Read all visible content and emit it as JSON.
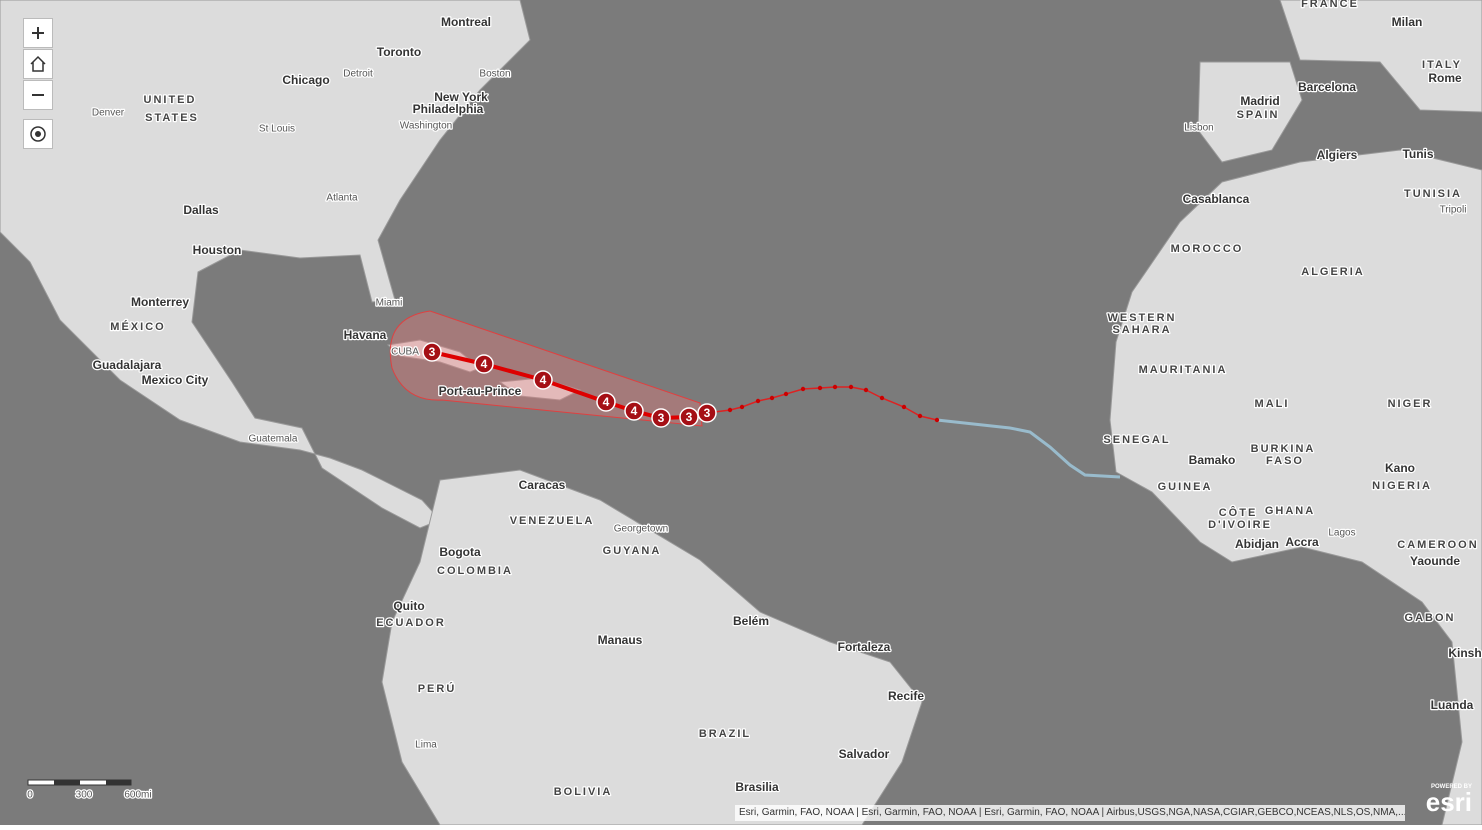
{
  "map": {
    "places": [
      "Montreal",
      "Toronto",
      "Boston",
      "Chicago",
      "Detroit",
      "New York",
      "Philadelphia",
      "Washington",
      "Denver",
      "UNITED",
      "STATES",
      "St Louis",
      "Atlanta",
      "Dallas",
      "Houston",
      "Miami",
      "Monterrey",
      "MÉXICO",
      "Havana",
      "CUBA",
      "Guadalajara",
      "Mexico City",
      "Port-au-Prince",
      "Guatemala",
      "Caracas",
      "VENEZUELA",
      "Georgetown",
      "GUYANA",
      "Bogota",
      "COLOMBIA",
      "Quito",
      "ECUADOR",
      "Manaus",
      "Belém",
      "Fortaleza",
      "PERÚ",
      "Recife",
      "Lima",
      "BRAZIL",
      "Salvador",
      "Brasilia",
      "BOLIVIA",
      "FRANCE",
      "Milan",
      "ITALY",
      "Rome",
      "Madrid",
      "SPAIN",
      "Barcelona",
      "Lisbon",
      "Algiers",
      "Tunis",
      "TUNISIA",
      "Tripoli",
      "Casablanca",
      "MOROCCO",
      "ALGERIA",
      "WESTERN",
      "SAHARA",
      "MAURITANIA",
      "MALI",
      "NIGER",
      "SENEGAL",
      "Bamako",
      "BURKINA",
      "FASO",
      "Kano",
      "NIGERIA",
      "GUINEA",
      "CÔTE",
      "D'IVOIRE",
      "GHANA",
      "Abidjan",
      "Accra",
      "Lagos",
      "CAMEROON",
      "Yaounde",
      "GABON",
      "Kinsh",
      "Luanda"
    ],
    "storm": {
      "forecast_categories": [
        3,
        4,
        4,
        4,
        4,
        3,
        3,
        3
      ]
    },
    "scale_bar": {
      "labels": [
        "0",
        "300",
        "600mi"
      ]
    },
    "attribution": "Esri, Garmin, FAO, NOAA | Esri, Garmin, FAO, NOAA | Esri, Garmin, FAO, NOAA | Airbus,USGS,NGA,NASA,CGIAR,GEBCO,NCEAS,NLS,OS,NMA,...",
    "logo": {
      "powered_by": "POWERED BY",
      "name": "esri"
    }
  }
}
